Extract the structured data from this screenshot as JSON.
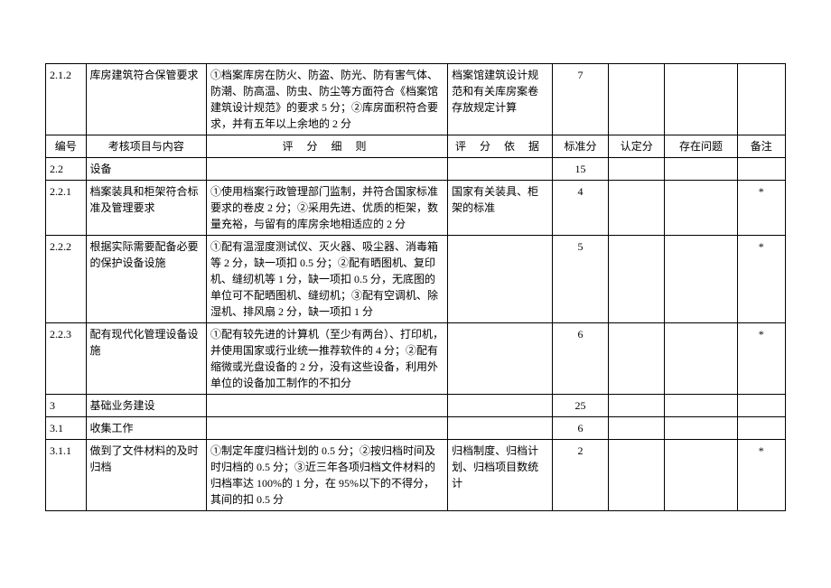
{
  "header": {
    "id": "编号",
    "item": "考核项目与内容",
    "rule": "评 分 细 则",
    "basis": "评 分 依 据",
    "std": "标准分",
    "conf": "认定分",
    "issue": "存在问题",
    "note": "备注"
  },
  "rows": [
    {
      "id": "2.1.2",
      "item": "库房建筑符合保管要求",
      "rule": "①档案库房在防火、防盗、防光、防有害气体、防潮、防高温、防虫、防尘等方面符合《档案馆建筑设计规范》的要求 5 分；②库房面积符合要求，并有五年以上余地的 2 分",
      "basis": "档案馆建筑设计规范和有关库房案卷存放规定计算",
      "std": "7",
      "conf": "",
      "issue": "",
      "note": ""
    },
    {
      "id": "2.2",
      "item": "设备",
      "rule": "",
      "basis": "",
      "std": "15",
      "conf": "",
      "issue": "",
      "note": ""
    },
    {
      "id": "2.2.1",
      "item": "档案装具和柜架符合标准及管理要求",
      "rule": "①使用档案行政管理部门监制，并符合国家标准要求的卷皮 2 分；②采用先进、优质的柜架，数量充裕，与留有的库房余地相适应的 2 分",
      "basis": "国家有关装具、柜架的标准",
      "std": "4",
      "conf": "",
      "issue": "",
      "note": "*"
    },
    {
      "id": "2.2.2",
      "item": "根据实际需要配备必要的保护设备设施",
      "rule": "①配有温湿度测试仪、灭火器、吸尘器、消毒箱等 2 分，缺一项扣 0.5 分；②配有晒图机、复印机、缝纫机等 1 分，缺一项扣 0.5 分，无底图的单位可不配晒图机、缝纫机；③配有空调机、除湿机、排风扇 2 分，缺一项扣 1 分",
      "basis": "",
      "std": "5",
      "conf": "",
      "issue": "",
      "note": "*"
    },
    {
      "id": "2.2.3",
      "item": "配有现代化管理设备设施",
      "rule": "①配有较先进的计算机（至少有两台）、打印机，并使用国家或行业统一推荐软件的 4 分；②配有缩微或光盘设备的 2 分，没有这些设备，利用外单位的设备加工制作的不扣分",
      "basis": "",
      "std": "6",
      "conf": "",
      "issue": "",
      "note": "*"
    },
    {
      "id": "3",
      "item": "基础业务建设",
      "rule": "",
      "basis": "",
      "std": "25",
      "conf": "",
      "issue": "",
      "note": ""
    },
    {
      "id": "3.1",
      "item": "收集工作",
      "rule": "",
      "basis": "",
      "std": "6",
      "conf": "",
      "issue": "",
      "note": ""
    },
    {
      "id": "3.1.1",
      "item": "做到了文件材料的及时归档",
      "rule": "①制定年度归档计划的 0.5 分；②按归档时间及时归档的 0.5 分；③近三年各项归档文件材料的归档率达 100%的 1 分，在 95%以下的不得分，其间的扣 0.5 分",
      "basis": "归档制度、归档计划、归档项目数统计",
      "std": "2",
      "conf": "",
      "issue": "",
      "note": "*"
    }
  ]
}
